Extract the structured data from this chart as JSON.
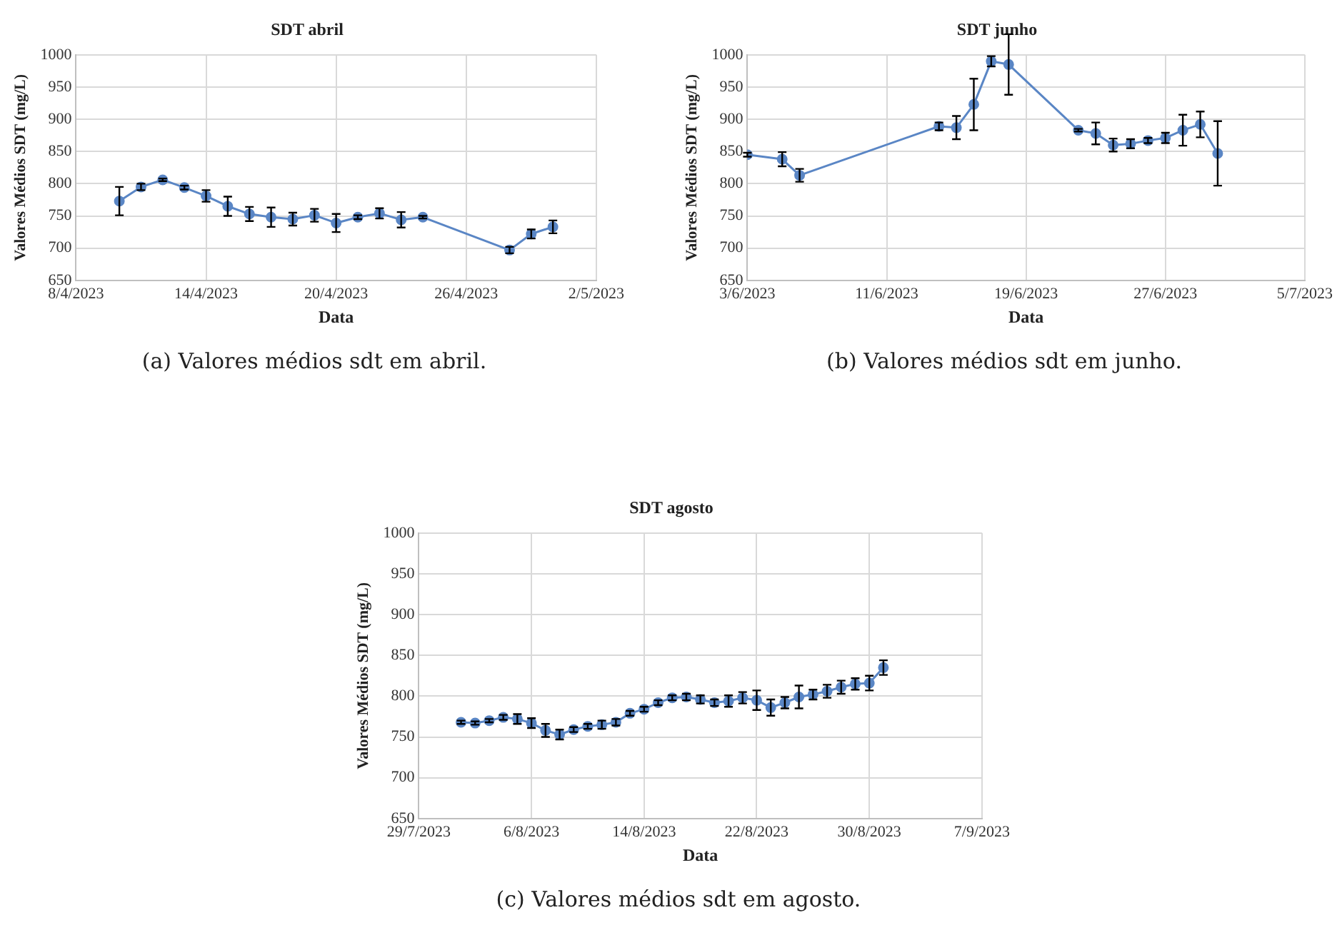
{
  "chart_data": [
    {
      "type": "line",
      "title": "SDT abril",
      "xlabel": "Data",
      "ylabel": "Valores Médios SDT (mg/L)",
      "annotations": [
        "(a) Valores médios sdt em abril."
      ],
      "grid": true,
      "marker": "circle",
      "line_style": "solid",
      "xlim": [
        "2023-04-08",
        "2023-05-02"
      ],
      "xticks": [
        {
          "value": "2023-04-08",
          "label": "8/4/2023"
        },
        {
          "value": "2023-04-14",
          "label": "14/4/2023"
        },
        {
          "value": "2023-04-20",
          "label": "20/4/2023"
        },
        {
          "value": "2023-04-26",
          "label": "26/4/2023"
        },
        {
          "value": "2023-05-02",
          "label": "2/5/2023"
        }
      ],
      "ylim": [
        650,
        1000
      ],
      "yticks": [
        650,
        700,
        750,
        800,
        850,
        900,
        950,
        1000
      ],
      "series": [
        {
          "color": "#5a86c5",
          "x": [
            "2023-04-10",
            "2023-04-11",
            "2023-04-12",
            "2023-04-13",
            "2023-04-14",
            "2023-04-15",
            "2023-04-16",
            "2023-04-17",
            "2023-04-18",
            "2023-04-19",
            "2023-04-20",
            "2023-04-21",
            "2023-04-22",
            "2023-04-23",
            "2023-04-24",
            "2023-04-28",
            "2023-04-29",
            "2023-04-30"
          ],
          "values": [
            773,
            795,
            806,
            794,
            781,
            765,
            753,
            748,
            745,
            751,
            739,
            748,
            754,
            744,
            748,
            697,
            722,
            733
          ],
          "errors": [
            22,
            5,
            2,
            3,
            9,
            15,
            11,
            15,
            10,
            10,
            14,
            3,
            8,
            12,
            2,
            5,
            7,
            10
          ]
        }
      ]
    },
    {
      "type": "line",
      "title": "SDT junho",
      "xlabel": "Data",
      "ylabel": "Valores Médios SDT (mg/L)",
      "annotations": [
        "(b) Valores médios sdt em junho."
      ],
      "grid": true,
      "marker": "circle",
      "line_style": "solid",
      "xlim": [
        "2023-06-03",
        "2023-07-05"
      ],
      "xticks": [
        {
          "value": "2023-06-03",
          "label": "3/6/2023"
        },
        {
          "value": "2023-06-11",
          "label": "11/6/2023"
        },
        {
          "value": "2023-06-19",
          "label": "19/6/2023"
        },
        {
          "value": "2023-06-27",
          "label": "27/6/2023"
        },
        {
          "value": "2023-07-05",
          "label": "5/7/2023"
        }
      ],
      "ylim": [
        650,
        1000
      ],
      "yticks": [
        650,
        700,
        750,
        800,
        850,
        900,
        950,
        1000
      ],
      "series": [
        {
          "color": "#5a86c5",
          "x": [
            "2023-06-03",
            "2023-06-05",
            "2023-06-06",
            "2023-06-14",
            "2023-06-15",
            "2023-06-16",
            "2023-06-17",
            "2023-06-18",
            "2023-06-22",
            "2023-06-23",
            "2023-06-24",
            "2023-06-25",
            "2023-06-26",
            "2023-06-27",
            "2023-06-28",
            "2023-06-29",
            "2023-06-30"
          ],
          "values": [
            845,
            838,
            813,
            889,
            887,
            923,
            990,
            985,
            883,
            878,
            860,
            862,
            867,
            871,
            883,
            892,
            847
          ],
          "errors": [
            3,
            11,
            10,
            6,
            18,
            40,
            8,
            47,
            2,
            17,
            10,
            7,
            4,
            8,
            24,
            20,
            50
          ]
        }
      ]
    },
    {
      "type": "line",
      "title": "SDT agosto",
      "xlabel": "Data",
      "ylabel": "Valores Médios SDT (mg/L)",
      "annotations": [
        "(c) Valores médios sdt em agosto."
      ],
      "grid": true,
      "marker": "circle",
      "line_style": "solid",
      "xlim": [
        "2023-07-29",
        "2023-09-07"
      ],
      "xticks": [
        {
          "value": "2023-07-29",
          "label": "29/7/2023"
        },
        {
          "value": "2023-08-06",
          "label": "6/8/2023"
        },
        {
          "value": "2023-08-14",
          "label": "14/8/2023"
        },
        {
          "value": "2023-08-22",
          "label": "22/8/2023"
        },
        {
          "value": "2023-08-30",
          "label": "30/8/2023"
        },
        {
          "value": "2023-09-07",
          "label": "7/9/2023"
        }
      ],
      "ylim": [
        650,
        1000
      ],
      "yticks": [
        650,
        700,
        750,
        800,
        850,
        900,
        950,
        1000
      ],
      "series": [
        {
          "color": "#5a86c5",
          "x": [
            "2023-08-01",
            "2023-08-02",
            "2023-08-03",
            "2023-08-04",
            "2023-08-05",
            "2023-08-06",
            "2023-08-07",
            "2023-08-08",
            "2023-08-09",
            "2023-08-10",
            "2023-08-11",
            "2023-08-12",
            "2023-08-13",
            "2023-08-14",
            "2023-08-15",
            "2023-08-16",
            "2023-08-17",
            "2023-08-18",
            "2023-08-19",
            "2023-08-20",
            "2023-08-21",
            "2023-08-22",
            "2023-08-23",
            "2023-08-24",
            "2023-08-25",
            "2023-08-26",
            "2023-08-27",
            "2023-08-28",
            "2023-08-29",
            "2023-08-30",
            "2023-08-31"
          ],
          "values": [
            768,
            767,
            770,
            774,
            772,
            767,
            758,
            753,
            759,
            763,
            765,
            768,
            779,
            784,
            792,
            798,
            799,
            796,
            792,
            794,
            798,
            795,
            786,
            792,
            799,
            802,
            806,
            811,
            815,
            816,
            835
          ],
          "errors": [
            2,
            2,
            2,
            3,
            6,
            6,
            8,
            6,
            3,
            3,
            5,
            4,
            3,
            3,
            3,
            3,
            4,
            5,
            4,
            7,
            7,
            12,
            10,
            7,
            14,
            6,
            8,
            8,
            7,
            9,
            9
          ]
        }
      ]
    }
  ]
}
